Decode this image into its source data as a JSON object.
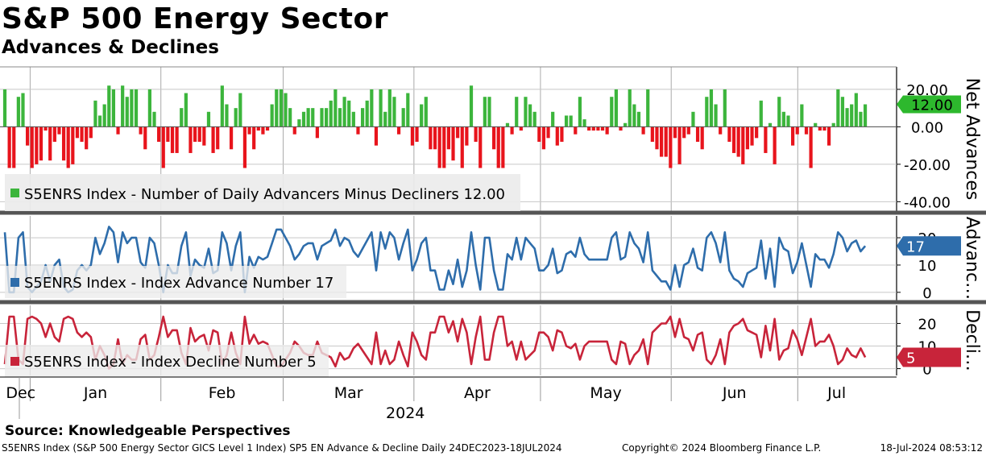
{
  "header": {
    "title": "S&P 500 Energy Sector",
    "subtitle": "Advances & Declines"
  },
  "footer": {
    "source": "Source: Knowledgeable Perspectives",
    "description": "S5ENRS Index (S&P 500 Energy Sector GICS Level 1 Index) SP5 EN Advance & Decline  Daily 24DEC2023-18JUL2024",
    "copyright": "Copyright© 2024 Bloomberg Finance L.P.",
    "timestamp": "18-Jul-2024 08:53:12"
  },
  "colors": {
    "positive": "#3cb53c",
    "negative": "#e8141c",
    "advance_line": "#2e6dab",
    "decline_line": "#c8243a",
    "legend_bg": "#ececec",
    "separator": "#555555"
  },
  "chart_data": [
    {
      "type": "bar",
      "panel": "net",
      "axis_label": "Net Advances",
      "ylim": [
        -45,
        32
      ],
      "yticks": [
        "20.00",
        "0.00",
        "-20.00",
        "-40.00"
      ],
      "ytick_values": [
        20,
        0,
        -20,
        -40
      ],
      "legend": "S5ENRS Index - Number of Daily Advancers Minus Decliners 12.00",
      "last_value_label": "12.00",
      "values": [
        20,
        -22,
        -22,
        16,
        18,
        -10,
        -22,
        -20,
        -18,
        -2,
        -18,
        -8,
        -4,
        -18,
        -22,
        -20,
        -6,
        -8,
        -12,
        -6,
        14,
        6,
        12,
        22,
        20,
        -4,
        22,
        16,
        20,
        20,
        -4,
        -12,
        20,
        8,
        -8,
        -22,
        -8,
        -14,
        -14,
        10,
        18,
        -14,
        -8,
        -8,
        -10,
        8,
        -14,
        -12,
        22,
        12,
        -12,
        10,
        18,
        -22,
        -4,
        -12,
        -2,
        -4,
        -2,
        12,
        20,
        20,
        18,
        10,
        -4,
        4,
        8,
        10,
        10,
        -6,
        10,
        10,
        14,
        20,
        10,
        16,
        14,
        8,
        -4,
        10,
        14,
        20,
        -10,
        20,
        8,
        20,
        16,
        -4,
        10,
        18,
        -10,
        -8,
        12,
        16,
        -12,
        -12,
        -22,
        -22,
        -12,
        -18,
        -6,
        -22,
        -10,
        22,
        -8,
        -22,
        16,
        16,
        -12,
        -22,
        -22,
        2,
        -4,
        16,
        -2,
        16,
        12,
        8,
        -8,
        -12,
        -6,
        8,
        -10,
        -8,
        6,
        6,
        -4,
        16,
        4,
        -2,
        -2,
        -2,
        -2,
        -4,
        16,
        20,
        -2,
        2,
        20,
        12,
        8,
        -4,
        20,
        -8,
        -12,
        -16,
        -16,
        -22,
        -6,
        -20,
        -6,
        -4,
        8,
        -8,
        -12,
        16,
        20,
        12,
        -4,
        20,
        -8,
        -14,
        -16,
        -20,
        -12,
        -10,
        -6,
        14,
        -14,
        2,
        -20,
        16,
        8,
        6,
        -10,
        -4,
        12,
        -4,
        -22,
        2,
        -2,
        -2,
        -10,
        2,
        20,
        16,
        10,
        12,
        18,
        8,
        12
      ],
      "x_start": "2023-12-26",
      "x_end": "2024-07-17"
    },
    {
      "type": "line",
      "panel": "advance",
      "axis_label": "Advanc…",
      "ylim": [
        -3,
        28
      ],
      "yticks": [
        "20",
        "10",
        "0"
      ],
      "ytick_values": [
        20,
        10,
        0
      ],
      "legend": "S5ENRS Index - Index Advance Number 17",
      "last_value_label": "17",
      "series": [
        {
          "name": "S5ENRS Index - Index Advance Number",
          "values": [
            22,
            0,
            0,
            20,
            22,
            2,
            0,
            2,
            4,
            10,
            4,
            10,
            12,
            2,
            0,
            1,
            8,
            10,
            8,
            10,
            20,
            14,
            18,
            24,
            22,
            11,
            22,
            18,
            20,
            20,
            11,
            9,
            20,
            18,
            10,
            0,
            10,
            7,
            7,
            17,
            22,
            6,
            12,
            10,
            9,
            16,
            7,
            8,
            22,
            18,
            8,
            17,
            22,
            0,
            13,
            9,
            13,
            12,
            13,
            18,
            23,
            23,
            20,
            17,
            12,
            14,
            17,
            18,
            18,
            12,
            17,
            18,
            19,
            23,
            17,
            20,
            19,
            15,
            13,
            16,
            19,
            22,
            8,
            22,
            16,
            22,
            20,
            12,
            18,
            23,
            8,
            12,
            18,
            20,
            8,
            8,
            1,
            1,
            8,
            3,
            12,
            2,
            8,
            22,
            10,
            1,
            20,
            20,
            8,
            1,
            1,
            14,
            12,
            20,
            12,
            20,
            18,
            16,
            8,
            8,
            10,
            16,
            7,
            8,
            14,
            15,
            13,
            20,
            14,
            12,
            12,
            12,
            12,
            12,
            20,
            22,
            12,
            13,
            22,
            18,
            16,
            11,
            22,
            8,
            6,
            4,
            4,
            1,
            10,
            2,
            10,
            11,
            16,
            9,
            8,
            20,
            22,
            18,
            11,
            22,
            8,
            5,
            4,
            2,
            7,
            8,
            9,
            19,
            5,
            16,
            2,
            20,
            16,
            15,
            7,
            11,
            18,
            10,
            2,
            14,
            12,
            12,
            9,
            14,
            22,
            20,
            15,
            18,
            19,
            15,
            17
          ]
        }
      ],
      "x_start": "2023-12-26",
      "x_end": "2024-07-17"
    },
    {
      "type": "line",
      "panel": "decline",
      "axis_label": "Decli…",
      "ylim": [
        -3,
        28
      ],
      "yticks": [
        "20",
        "10",
        "0"
      ],
      "ytick_values": [
        20,
        10,
        0
      ],
      "legend": "S5ENRS Index - Index Decline Number 5",
      "last_value_label": "5",
      "series": [
        {
          "name": "S5ENRS Index - Index Decline Number",
          "values": [
            2,
            23,
            23,
            4,
            2,
            22,
            23,
            22,
            20,
            14,
            20,
            14,
            12,
            22,
            23,
            22,
            16,
            14,
            16,
            14,
            4,
            10,
            6,
            0,
            2,
            13,
            2,
            6,
            4,
            4,
            13,
            15,
            4,
            6,
            14,
            23,
            14,
            17,
            17,
            7,
            2,
            18,
            12,
            14,
            15,
            8,
            17,
            16,
            2,
            6,
            16,
            7,
            2,
            23,
            11,
            15,
            11,
            12,
            11,
            6,
            1,
            1,
            4,
            7,
            12,
            10,
            7,
            6,
            6,
            12,
            7,
            6,
            5,
            1,
            7,
            4,
            5,
            9,
            11,
            8,
            5,
            2,
            16,
            2,
            8,
            2,
            4,
            12,
            6,
            1,
            16,
            12,
            6,
            4,
            16,
            16,
            23,
            23,
            16,
            21,
            12,
            22,
            16,
            2,
            14,
            23,
            4,
            4,
            16,
            23,
            23,
            10,
            12,
            4,
            12,
            4,
            6,
            8,
            16,
            16,
            14,
            8,
            17,
            16,
            10,
            9,
            11,
            4,
            10,
            12,
            12,
            12,
            12,
            12,
            4,
            2,
            12,
            11,
            2,
            6,
            8,
            13,
            2,
            16,
            18,
            20,
            20,
            23,
            14,
            22,
            14,
            13,
            8,
            15,
            16,
            4,
            2,
            6,
            13,
            2,
            16,
            19,
            20,
            22,
            17,
            16,
            15,
            5,
            19,
            8,
            22,
            4,
            8,
            9,
            17,
            13,
            6,
            14,
            22,
            10,
            12,
            12,
            15,
            10,
            2,
            4,
            9,
            6,
            5,
            9,
            5
          ]
        }
      ],
      "x_start": "2023-12-26",
      "x_end": "2024-07-17"
    }
  ],
  "x_axis": {
    "months": [
      "Dec",
      "Jan",
      "Feb",
      "Mar",
      "Apr",
      "May",
      "Jun",
      "Jul"
    ],
    "year_label": "2024"
  }
}
